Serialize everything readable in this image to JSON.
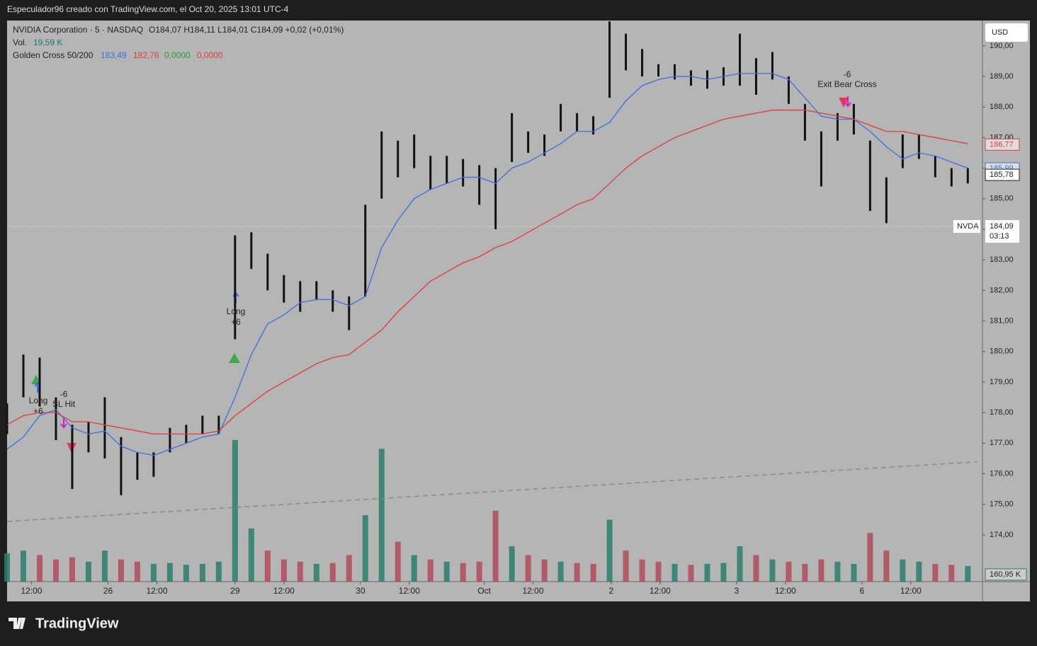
{
  "header": {
    "credit": "Especulador96 creado con TradingView.com, el Oct 20, 2025 13:01 UTC-4",
    "symbol": "NVIDIA Corporation · 5 · NASDAQ",
    "ohlc": "O184,07  H184,11  L184,01  C184,09  +0,02 (+0,01%)",
    "vol_label": "Vol.",
    "vol_value": "19,59 K",
    "indicator": "Golden Cross 50/200",
    "ind_values": [
      "183,49",
      "182,76",
      "0,0000",
      "0,0000"
    ],
    "currency": "USD",
    "logo": "TradingView"
  },
  "chart_data": {
    "type": "candlestick",
    "x": [
      0,
      10,
      20,
      30,
      40,
      50,
      60,
      70,
      80,
      90,
      100,
      110,
      120,
      130,
      140,
      150,
      160,
      170,
      180,
      190,
      200,
      210,
      220,
      230,
      240,
      250,
      260,
      270,
      280,
      290,
      300,
      310,
      320,
      330,
      340,
      350,
      360,
      370,
      380,
      390,
      400,
      410,
      420,
      430,
      440,
      450,
      460,
      470,
      480,
      490,
      500,
      510,
      520,
      530,
      540,
      550,
      560,
      570,
      580,
      590
    ],
    "series": [
      {
        "name": "NVDA",
        "color": "#111111",
        "high": [
          178.3,
          179.9,
          179.8,
          178.5,
          177.6,
          177.7,
          178.5,
          177.2,
          176.7,
          176.7,
          177.5,
          177.6,
          177.9,
          177.9,
          183.8,
          183.9,
          183.2,
          182.5,
          182.3,
          182.3,
          182.0,
          181.8,
          184.8,
          187.2,
          186.9,
          187.1,
          186.4,
          186.4,
          186.3,
          186.1,
          186.0,
          187.8,
          187.2,
          187.1,
          188.1,
          187.8,
          187.7,
          190.8,
          190.4,
          189.9,
          189.4,
          189.4,
          189.2,
          189.2,
          189.3,
          190.4,
          189.6,
          189.8,
          189.0,
          188.1,
          187.2,
          187.8,
          188.1,
          186.9,
          185.7,
          187.1,
          187.1,
          186.4,
          186.0,
          186.0
        ],
        "low": [
          177.3,
          178.5,
          178.2,
          177.1,
          175.5,
          176.7,
          176.5,
          175.3,
          175.8,
          175.9,
          176.7,
          177.0,
          177.3,
          177.3,
          180.4,
          182.7,
          182.0,
          181.6,
          181.3,
          181.7,
          181.3,
          180.7,
          181.8,
          185.0,
          185.7,
          186.0,
          185.3,
          185.5,
          185.4,
          184.8,
          184.0,
          186.2,
          186.5,
          186.4,
          187.2,
          187.2,
          187.1,
          188.3,
          189.2,
          189.0,
          189.0,
          188.9,
          188.7,
          188.6,
          188.7,
          188.7,
          188.4,
          188.9,
          188.1,
          186.9,
          185.4,
          186.9,
          187.1,
          184.6,
          184.2,
          186.0,
          186.3,
          185.7,
          185.4,
          185.5
        ]
      },
      {
        "name": "SMA 50",
        "color": "#3b6fe0",
        "values": [
          176.8,
          177.2,
          177.9,
          178.1,
          177.5,
          177.3,
          177.4,
          176.9,
          176.7,
          176.6,
          176.8,
          177.0,
          177.2,
          177.3,
          178.5,
          179.9,
          180.9,
          181.2,
          181.6,
          181.7,
          181.7,
          181.5,
          181.8,
          183.4,
          184.3,
          185.0,
          185.3,
          185.5,
          185.7,
          185.7,
          185.5,
          186.0,
          186.2,
          186.5,
          186.8,
          187.2,
          187.2,
          187.5,
          188.2,
          188.7,
          188.9,
          189.0,
          189.0,
          188.9,
          189.0,
          189.1,
          189.1,
          189.1,
          188.9,
          188.3,
          187.7,
          187.6,
          187.6,
          187.2,
          186.7,
          186.3,
          186.5,
          186.4,
          186.2,
          186.0
        ]
      },
      {
        "name": "SMA 200",
        "color": "#e03b3b",
        "values": [
          177.6,
          177.9,
          178.0,
          178.0,
          177.7,
          177.7,
          177.6,
          177.5,
          177.4,
          177.3,
          177.3,
          177.3,
          177.3,
          177.4,
          177.9,
          178.3,
          178.7,
          179.0,
          179.3,
          179.6,
          179.8,
          179.9,
          180.3,
          180.7,
          181.3,
          181.8,
          182.3,
          182.6,
          182.9,
          183.1,
          183.4,
          183.6,
          183.9,
          184.2,
          184.5,
          184.8,
          185.0,
          185.5,
          186.0,
          186.4,
          186.7,
          187.0,
          187.2,
          187.4,
          187.6,
          187.7,
          187.8,
          187.9,
          187.9,
          187.9,
          187.8,
          187.7,
          187.6,
          187.4,
          187.2,
          187.2,
          187.1,
          187.0,
          186.9,
          186.8
        ]
      },
      {
        "name": "Volume",
        "axis": "y2",
        "values": [
          640,
          700,
          600,
          500,
          550,
          450,
          700,
          500,
          450,
          400,
          420,
          380,
          400,
          450,
          3200,
          1200,
          700,
          500,
          450,
          400,
          420,
          600,
          1500,
          3000,
          900,
          600,
          500,
          450,
          420,
          450,
          1600,
          800,
          600,
          500,
          450,
          420,
          400,
          1400,
          700,
          500,
          450,
          400,
          380,
          400,
          420,
          800,
          600,
          500,
          450,
          400,
          500,
          450,
          400,
          1100,
          700,
          500,
          450,
          400,
          380,
          350
        ]
      }
    ],
    "trend_line": [
      174.44,
      176.39
    ],
    "xlim": [
      0,
      599
    ],
    "ylim": [
      172.47,
      190.83
    ],
    "y2lim": [
      0,
      3500
    ],
    "xticks": [
      {
        "value": 15,
        "label": "12:00"
      },
      {
        "value": 62,
        "label": "26"
      },
      {
        "value": 92,
        "label": "12:00"
      },
      {
        "value": 140,
        "label": "29"
      },
      {
        "value": 170,
        "label": "12:00"
      },
      {
        "value": 217,
        "label": "30"
      },
      {
        "value": 247,
        "label": "12:00"
      },
      {
        "value": 293,
        "label": "Oct"
      },
      {
        "value": 323,
        "label": "12:00"
      },
      {
        "value": 371,
        "label": "2"
      },
      {
        "value": 401,
        "label": "12:00"
      },
      {
        "value": 448,
        "label": "3"
      },
      {
        "value": 478,
        "label": "12:00"
      },
      {
        "value": 525,
        "label": "6"
      },
      {
        "value": 555,
        "label": "12:00"
      }
    ],
    "yticks": [
      {
        "value": 174,
        "label": "174,00"
      },
      {
        "value": 175,
        "label": "175,00"
      },
      {
        "value": 176,
        "label": "176,00"
      },
      {
        "value": 177,
        "label": "177,00"
      },
      {
        "value": 178,
        "label": "178,00"
      },
      {
        "value": 179,
        "label": "179,00"
      },
      {
        "value": 180,
        "label": "180,00"
      },
      {
        "value": 181,
        "label": "181,00"
      },
      {
        "value": 182,
        "label": "182,00"
      },
      {
        "value": 183,
        "label": "183,00"
      },
      {
        "value": 184,
        "label": "184,00"
      },
      {
        "value": 185,
        "label": "185,00"
      },
      {
        "value": 186,
        "label": "186,00"
      },
      {
        "value": 187,
        "label": "187,00"
      },
      {
        "value": 188,
        "label": "188,00"
      },
      {
        "value": 189,
        "label": "189,00"
      },
      {
        "value": 190,
        "label": "190,00"
      }
    ],
    "price_labels": [
      {
        "value": 186.77,
        "label": "186,77",
        "color": "#e03b3b"
      },
      {
        "value": 185.99,
        "label": "185,99",
        "color": "#3b6fe0"
      },
      {
        "value": 185.78,
        "label": "185,78",
        "color": "#222222"
      }
    ],
    "last_price": {
      "value": 184.09,
      "label": "184,09",
      "symbol": "NVDA",
      "countdown": "03:13"
    },
    "volume_label": {
      "value": 160.95,
      "label": "160,95 K"
    },
    "annotations": [
      "Long",
      "+6",
      "-6",
      "SL Hit",
      "Long",
      "+6",
      "-6",
      "Exit Bear Cross"
    ]
  }
}
